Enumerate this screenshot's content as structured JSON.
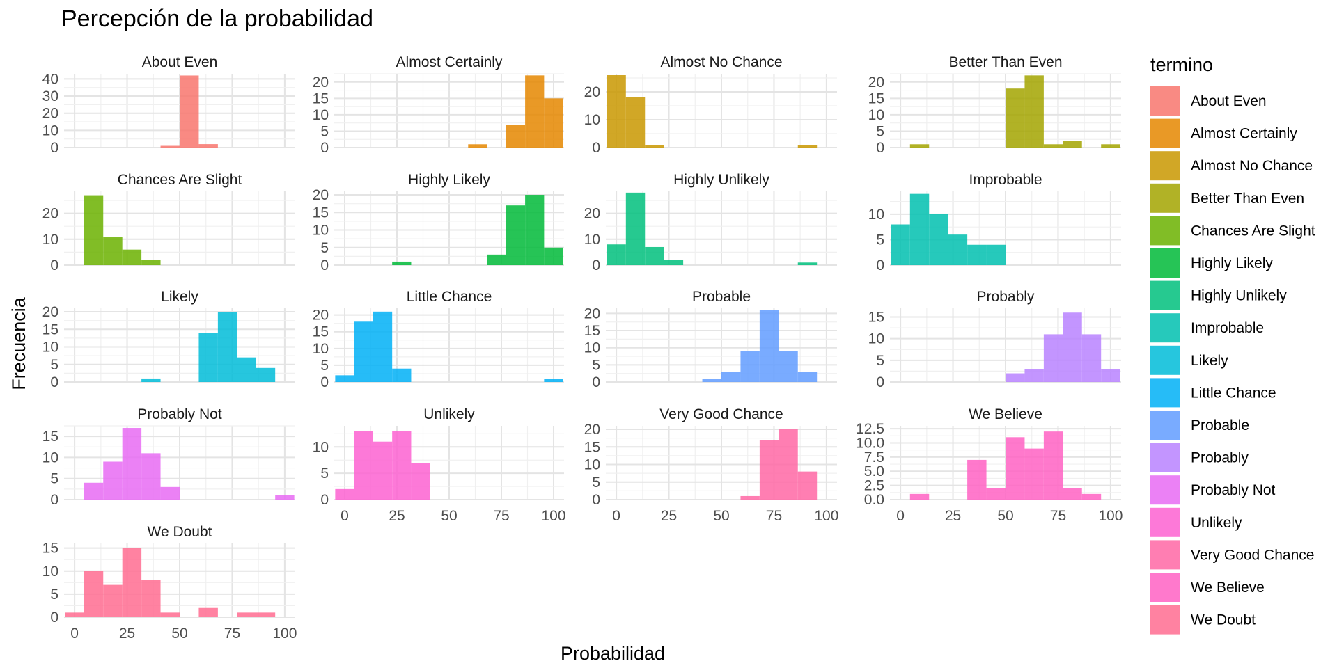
{
  "chart_data": {
    "type": "histogram-facets",
    "title": "Percepción de la probabilidad",
    "xlabel": "Probabilidad",
    "ylabel": "Frecuencia",
    "legend_title": "termino",
    "legend_position": "right",
    "xlim": [
      -5,
      105
    ],
    "x_ticks": [
      "0",
      "25",
      "50",
      "75",
      "100"
    ],
    "bin_width": 9.09,
    "bin_centers": [
      0,
      9.09,
      18.18,
      27.27,
      36.36,
      45.45,
      54.55,
      63.64,
      72.73,
      81.82,
      90.91,
      100
    ],
    "facets": [
      {
        "name": "About Even",
        "color": "#F8766D",
        "ylim": [
          0,
          43
        ],
        "y_ticks": [
          "0",
          "10",
          "20",
          "30",
          "40"
        ],
        "counts": [
          0,
          0,
          0,
          0,
          0,
          1,
          42,
          2,
          0,
          0,
          0,
          0
        ]
      },
      {
        "name": "Almost Certainly",
        "color": "#E58700",
        "ylim": [
          0,
          22.5
        ],
        "y_ticks": [
          "0",
          "5",
          "10",
          "15",
          "20"
        ],
        "counts": [
          0,
          0,
          0,
          0,
          0,
          0,
          0,
          1,
          0,
          7,
          22,
          15
        ]
      },
      {
        "name": "Almost No Chance",
        "color": "#C99800",
        "ylim": [
          0,
          26.5
        ],
        "y_ticks": [
          "0",
          "10",
          "20"
        ],
        "counts": [
          26,
          18,
          1,
          0,
          0,
          0,
          0,
          0,
          0,
          0,
          1,
          0
        ]
      },
      {
        "name": "Better Than Even",
        "color": "#A3A500",
        "ylim": [
          0,
          22.5
        ],
        "y_ticks": [
          "0",
          "5",
          "10",
          "15",
          "20"
        ],
        "counts": [
          0,
          1,
          0,
          0,
          0,
          0,
          18,
          22,
          1,
          2,
          0,
          1
        ]
      },
      {
        "name": "Chances Are Slight",
        "color": "#6BB100",
        "ylim": [
          0,
          28.5
        ],
        "y_ticks": [
          "0",
          "10",
          "20"
        ],
        "counts": [
          0,
          27,
          11,
          6,
          2,
          0,
          0,
          0,
          0,
          0,
          0,
          0
        ]
      },
      {
        "name": "Highly Likely",
        "color": "#00BA38",
        "ylim": [
          0,
          21
        ],
        "y_ticks": [
          "0",
          "5",
          "10",
          "15",
          "20"
        ],
        "counts": [
          0,
          0,
          0,
          1,
          0,
          0,
          0,
          0,
          3,
          17,
          20,
          5
        ]
      },
      {
        "name": "Highly Unlikely",
        "color": "#00BF7D",
        "ylim": [
          0,
          28.5
        ],
        "y_ticks": [
          "0",
          "10",
          "20"
        ],
        "counts": [
          8,
          28,
          7,
          2,
          0,
          0,
          0,
          0,
          0,
          0,
          1,
          0
        ]
      },
      {
        "name": "Improbable",
        "color": "#00C0AF",
        "ylim": [
          0,
          14.5
        ],
        "y_ticks": [
          "0",
          "5",
          "10"
        ],
        "counts": [
          8,
          14,
          10,
          6,
          4,
          4,
          0,
          0,
          0,
          0,
          0,
          0
        ]
      },
      {
        "name": "Likely",
        "color": "#00BCD8",
        "ylim": [
          0,
          21
        ],
        "y_ticks": [
          "0",
          "5",
          "10",
          "15",
          "20"
        ],
        "counts": [
          0,
          0,
          0,
          0,
          1,
          0,
          0,
          14,
          20,
          7,
          4,
          0
        ]
      },
      {
        "name": "Little Chance",
        "color": "#00B0F6",
        "ylim": [
          0,
          22
        ],
        "y_ticks": [
          "0",
          "5",
          "10",
          "15",
          "20"
        ],
        "counts": [
          2,
          18,
          21,
          4,
          0,
          0,
          0,
          0,
          0,
          0,
          0,
          1
        ]
      },
      {
        "name": "Probable",
        "color": "#619CFF",
        "ylim": [
          0,
          21.5
        ],
        "y_ticks": [
          "0",
          "5",
          "10",
          "15",
          "20"
        ],
        "counts": [
          0,
          0,
          0,
          0,
          0,
          1,
          3,
          9,
          21,
          9,
          3,
          0
        ]
      },
      {
        "name": "Probably",
        "color": "#B983FF",
        "ylim": [
          0,
          17
        ],
        "y_ticks": [
          "0",
          "5",
          "10",
          "15"
        ],
        "counts": [
          0,
          0,
          0,
          0,
          0,
          0,
          2,
          3,
          11,
          16,
          11,
          3
        ]
      },
      {
        "name": "Probably Not",
        "color": "#E76BF3",
        "ylim": [
          0,
          17.5
        ],
        "y_ticks": [
          "0",
          "5",
          "10",
          "15"
        ],
        "counts": [
          0,
          4,
          9,
          17,
          11,
          3,
          0,
          0,
          0,
          0,
          0,
          1
        ]
      },
      {
        "name": "Unlikely",
        "color": "#FD61D1",
        "ylim": [
          0,
          14
        ],
        "y_ticks": [
          "0",
          "5",
          "10"
        ],
        "counts": [
          2,
          13,
          11,
          13,
          7,
          0,
          0,
          0,
          0,
          0,
          0,
          0
        ]
      },
      {
        "name": "Very Good Chance",
        "color": "#FF67A4",
        "ylim": [
          0,
          21
        ],
        "y_ticks": [
          "0",
          "5",
          "10",
          "15",
          "20"
        ],
        "counts": [
          0,
          0,
          0,
          0,
          0,
          0,
          0,
          1,
          17,
          20,
          8,
          0
        ]
      },
      {
        "name": "We Believe",
        "color": "#FF61C3",
        "ylim": [
          0,
          13
        ],
        "y_ticks": [
          "0.0",
          "2.5",
          "5.0",
          "7.5",
          "10.0",
          "12.5"
        ],
        "counts": [
          0,
          1,
          0,
          0,
          7,
          2,
          11,
          9,
          12,
          2,
          1,
          0
        ]
      },
      {
        "name": "We Doubt",
        "color": "#FF6C91",
        "ylim": [
          0,
          16
        ],
        "y_ticks": [
          "0",
          "5",
          "10",
          "15"
        ],
        "counts": [
          1,
          10,
          7,
          15,
          8,
          1,
          0,
          2,
          0,
          1,
          1,
          0
        ]
      }
    ]
  }
}
